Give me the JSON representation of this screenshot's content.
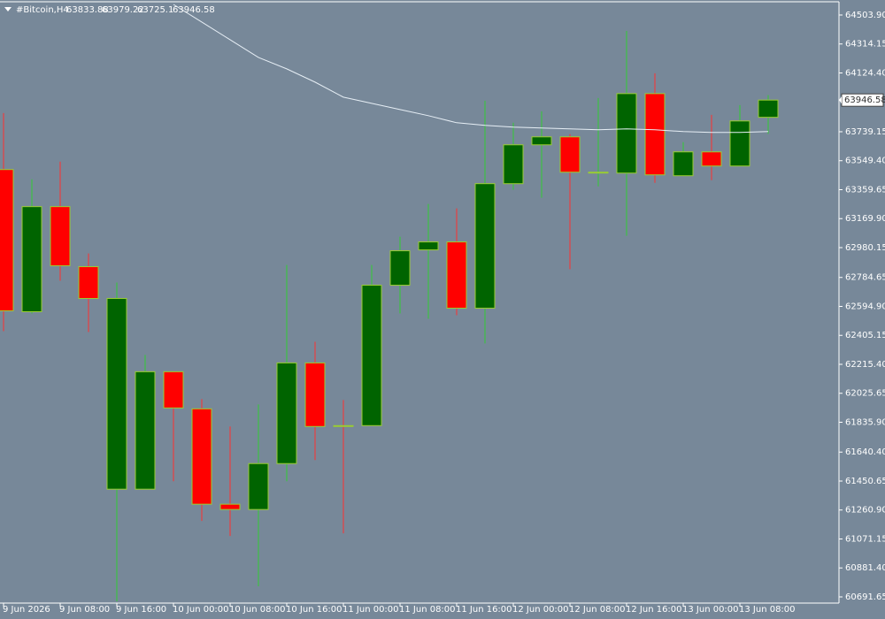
{
  "chart_data": {
    "type": "candlestick",
    "title": "#Bitcoin,H4",
    "categories": [
      "9 Jun 2026",
      null,
      "9 Jun 08:00",
      null,
      "9 Jun 16:00",
      null,
      "10 Jun 00:00",
      null,
      "10 Jun 08:00",
      null,
      "10 Jun 16:00",
      null,
      "11 Jun 00:00",
      null,
      "11 Jun 08:00",
      null,
      "11 Jun 16:00",
      null,
      "12 Jun 00:00",
      null,
      "12 Jun 08:00",
      null,
      "12 Jun 16:00",
      null,
      "13 Jun 00:00",
      null,
      "13 Jun 08:00",
      null
    ],
    "open": [
      63491.5,
      62560.1,
      63248.6,
      62855.2,
      61397.4,
      61397.4,
      62166.8,
      61923.8,
      61299.0,
      61264.3,
      61565.1,
      62224.6,
      61813.9,
      61813.9,
      62733.7,
      62965.1,
      63017.2,
      62583.3,
      63399.0,
      63653.5,
      63705.6,
      63468.4,
      63468.4,
      63989.0,
      63451.0,
      63607.2,
      63514.7,
      63833.88
    ],
    "high": [
      63861.8,
      63427.9,
      63543.6,
      62941.9,
      62751.0,
      62276.7,
      62166.8,
      61987.4,
      61808.1,
      61952.7,
      62866.7,
      62363.4,
      61981.6,
      62866.7,
      63051.9,
      63265.9,
      63237.0,
      63942.8,
      63798.1,
      63873.3,
      63722.9,
      63960.1,
      64399.8,
      64122.1,
      63670.9,
      63850.2,
      63913.8,
      63979.22
    ],
    "low": [
      62432.9,
      62548.6,
      62762.6,
      62427.1,
      60662.7,
      61397.4,
      61449.4,
      61189.1,
      61090.7,
      60761.0,
      61449.4,
      61588.3,
      61108.1,
      61813.9,
      62548.6,
      62513.9,
      62537.0,
      62351.9,
      63358.5,
      63306.4,
      62837.8,
      63381.6,
      63057.6,
      63404.7,
      63451.0,
      63422.1,
      63514.7,
      63725.1
    ],
    "close": [
      62565.9,
      63248.6,
      62861.0,
      62646.9,
      62646.9,
      62166.8,
      61929.6,
      61299.0,
      61264.3,
      61565.1,
      62224.6,
      61808.1,
      61808.1,
      62733.7,
      62959.3,
      63017.2,
      62583.3,
      63399.0,
      63653.5,
      63705.6,
      63474.2,
      63474.2,
      63989.0,
      63456.8,
      63607.2,
      63514.7,
      63809.7,
      63946.58
    ],
    "up_color": "#006400",
    "down_color": "#ff0000",
    "outline_color": "#9acd32",
    "up_wick_color": "#32cd32",
    "down_wick_color": "#ff3030",
    "moving_average": {
      "color": "#e6eef5",
      "values": [
        null,
        null,
        null,
        null,
        null,
        null,
        64573.3,
        64457.6,
        64341.9,
        64226.2,
        64151.0,
        64064.2,
        63965.9,
        63925.4,
        63884.9,
        63844.4,
        63798.1,
        63780.8,
        63769.2,
        63763.4,
        63757.6,
        63751.8,
        63757.6,
        63751.8,
        63740.3,
        63734.5,
        63734.5,
        63740.3
      ]
    },
    "ylim": [
      60651.1,
      64590.7
    ],
    "yticks": [
      {
        "value": 64503.9,
        "label": "64503.90"
      },
      64314.15,
      {
        "value": 64124.4,
        "label": "64124.40"
      },
      63739.15,
      {
        "value": 63549.4,
        "label": "63549.40"
      },
      63359.65,
      {
        "value": 63169.9,
        "label": "63169.90"
      },
      62980.15,
      62784.65,
      {
        "value": 62594.9,
        "label": "62594.90"
      },
      62405.15,
      {
        "value": 62215.4,
        "label": "62215.40"
      },
      62025.65,
      {
        "value": 61835.9,
        "label": "61835.90"
      },
      {
        "value": 61640.4,
        "label": "61640.40"
      },
      61450.65,
      {
        "value": 61260.9,
        "label": "61260.90"
      },
      61071.15,
      {
        "value": 60881.4,
        "label": "60881.40"
      },
      60691.65
    ]
  }
}
